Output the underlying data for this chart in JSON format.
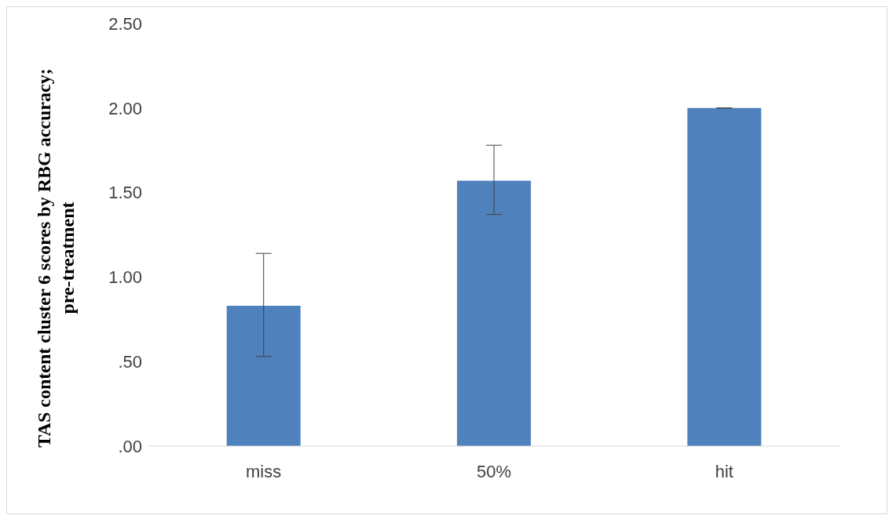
{
  "chart_data": {
    "type": "bar",
    "ylabel": "TAS content cluster 6 scores by RBG accuracy; pre-treatment",
    "categories": [
      "miss",
      "50%",
      "hit"
    ],
    "values": [
      0.83,
      1.57,
      2.0
    ],
    "errors": [
      [
        0.53,
        1.14
      ],
      [
        1.37,
        1.78
      ],
      [
        2.0,
        2.0
      ]
    ],
    "color": "#4f81bd",
    "ylim": [
      0,
      2.5
    ],
    "yticks": [
      {
        "value": 0,
        "label": ".00"
      },
      {
        "value": 0.5,
        "label": ".50"
      },
      {
        "value": 1,
        "label": "1.00"
      },
      {
        "value": 1.5,
        "label": "1.50"
      },
      {
        "value": 2,
        "label": "2.00"
      },
      {
        "value": 2.5,
        "label": "2.50"
      }
    ],
    "grid": false,
    "legend": false
  }
}
